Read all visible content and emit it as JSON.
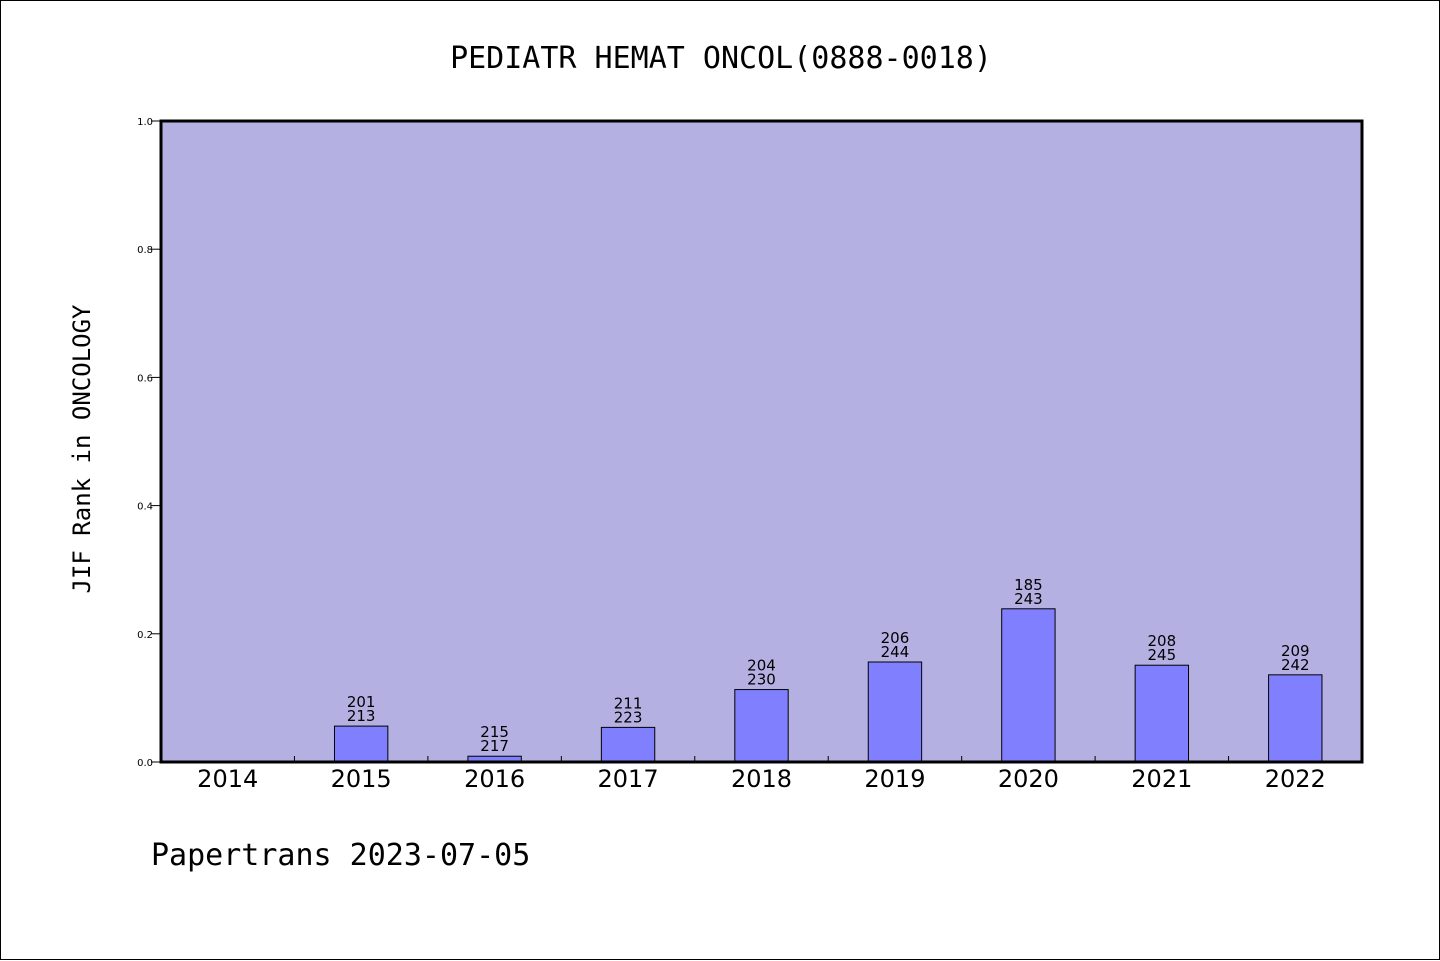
{
  "chart_data": {
    "type": "bar",
    "title": "PEDIATR HEMAT ONCOL(0888-0018)",
    "xlabel": "",
    "ylabel": "JIF Rank in ONCOLOGY",
    "ylim": [
      0,
      1.0
    ],
    "yticks": [
      "0.0",
      "0.2",
      "0.4",
      "0.6",
      "0.8",
      "1.0"
    ],
    "grid": false,
    "categories": [
      "2014",
      "2015",
      "2016",
      "2017",
      "2018",
      "2019",
      "2020",
      "2021",
      "2022"
    ],
    "values": [
      0,
      0.056,
      0.009,
      0.054,
      0.113,
      0.156,
      0.239,
      0.151,
      0.136
    ],
    "bar_labels": [
      [
        "",
        ""
      ],
      [
        "201",
        "213"
      ],
      [
        "215",
        "217"
      ],
      [
        "211",
        "223"
      ],
      [
        "204",
        "230"
      ],
      [
        "206",
        "244"
      ],
      [
        "185",
        "243"
      ],
      [
        "208",
        "245"
      ],
      [
        "209",
        "242"
      ]
    ],
    "colors": {
      "plot_background": "#b5b0e2",
      "bar_fill": "#8080ff",
      "bar_stroke": "#000000"
    }
  },
  "footer": {
    "text": "Papertrans 2023-07-05"
  }
}
